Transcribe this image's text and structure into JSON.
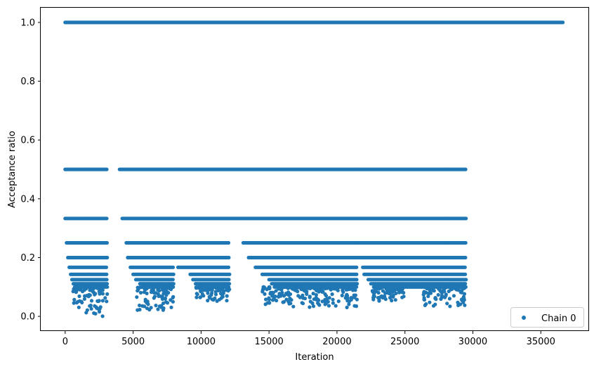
{
  "chart_data": {
    "type": "scatter",
    "title": "",
    "xlabel": "Iteration",
    "ylabel": "Acceptance ratio",
    "xlim": [
      -1800,
      38500
    ],
    "ylim": [
      -0.05,
      1.05
    ],
    "xticks": [
      0,
      5000,
      10000,
      15000,
      20000,
      25000,
      30000,
      35000
    ],
    "xtick_labels": [
      "0",
      "5000",
      "10000",
      "15000",
      "20000",
      "25000",
      "30000",
      "35000"
    ],
    "yticks": [
      0.0,
      0.2,
      0.4,
      0.6,
      0.8,
      1.0
    ],
    "ytick_labels": [
      "0.0",
      "0.2",
      "0.4",
      "0.6",
      "0.8",
      "1.0"
    ],
    "grid": false,
    "legend": {
      "position": "lower-right",
      "entries": [
        "Chain 0"
      ]
    },
    "color": "#1f77b4",
    "series": [
      {
        "name": "Chain 0",
        "bands": [
          {
            "y": 1.0,
            "segments": [
              [
                0,
                36700
              ]
            ]
          },
          {
            "y": 0.5,
            "segments": [
              [
                0,
                3100
              ],
              [
                4000,
                29500
              ]
            ]
          },
          {
            "y": 0.333,
            "segments": [
              [
                0,
                3100
              ],
              [
                4200,
                29500
              ]
            ]
          },
          {
            "y": 0.25,
            "segments": [
              [
                100,
                3100
              ],
              [
                4500,
                12100
              ],
              [
                13100,
                29500
              ]
            ]
          },
          {
            "y": 0.2,
            "segments": [
              [
                200,
                3100
              ],
              [
                4600,
                12100
              ],
              [
                13500,
                29500
              ]
            ]
          },
          {
            "y": 0.167,
            "segments": [
              [
                300,
                3100
              ],
              [
                4800,
                8000
              ],
              [
                8300,
                12100
              ],
              [
                14000,
                21500
              ],
              [
                21900,
                29500
              ]
            ]
          },
          {
            "y": 0.143,
            "segments": [
              [
                400,
                3100
              ],
              [
                5000,
                8000
              ],
              [
                9200,
                12100
              ],
              [
                14500,
                21500
              ],
              [
                22000,
                29500
              ]
            ]
          },
          {
            "y": 0.125,
            "segments": [
              [
                500,
                3100
              ],
              [
                5200,
                8000
              ],
              [
                9400,
                12100
              ],
              [
                15000,
                21500
              ],
              [
                22300,
                29500
              ]
            ]
          },
          {
            "y": 0.111,
            "segments": [
              [
                600,
                3100
              ],
              [
                5500,
                8000
              ],
              [
                9600,
                12100
              ],
              [
                15200,
                21500
              ],
              [
                22500,
                29500
              ]
            ]
          },
          {
            "y": 0.1,
            "segments": [
              [
                700,
                3100
              ],
              [
                5800,
                8000
              ],
              [
                9800,
                12100
              ],
              [
                15400,
                21500
              ],
              [
                22700,
                29500
              ]
            ]
          }
        ],
        "clusters": [
          {
            "x": [
              500,
              1300
            ],
            "y": [
              0.03,
              0.1
            ]
          },
          {
            "x": [
              1400,
              3100
            ],
            "y": [
              0.0,
              0.1
            ]
          },
          {
            "x": [
              5200,
              8000
            ],
            "y": [
              0.02,
              0.1
            ]
          },
          {
            "x": [
              9600,
              12100
            ],
            "y": [
              0.05,
              0.1
            ]
          },
          {
            "x": [
              14500,
              21500
            ],
            "y": [
              0.03,
              0.1
            ]
          },
          {
            "x": [
              22600,
              25000
            ],
            "y": [
              0.05,
              0.1
            ]
          },
          {
            "x": [
              26300,
              29500
            ],
            "y": [
              0.03,
              0.1
            ]
          }
        ]
      }
    ]
  }
}
